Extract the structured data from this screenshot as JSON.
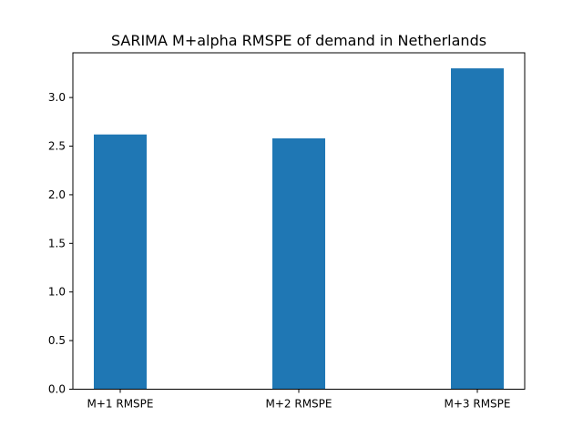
{
  "chart_data": {
    "type": "bar",
    "title": "SARIMA M+alpha RMSPE of demand in Netherlands",
    "xlabel": "",
    "ylabel": "",
    "categories": [
      "M+1 RMSPE",
      "M+2 RMSPE",
      "M+3 RMSPE"
    ],
    "values": [
      2.62,
      2.58,
      3.3
    ],
    "ylim": [
      0,
      3.46
    ],
    "yticks": [
      "0.0",
      "0.5",
      "1.0",
      "1.5",
      "2.0",
      "2.5",
      "3.0"
    ],
    "bar_color": "#1f77b4",
    "grid": false,
    "legend": "none"
  }
}
